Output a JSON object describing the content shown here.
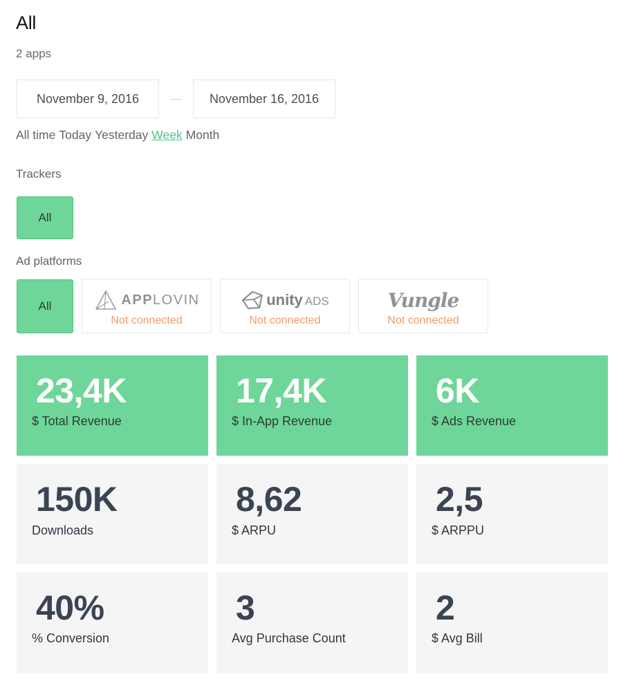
{
  "header": {
    "title": "All",
    "subtitle": "2 apps"
  },
  "date_range": {
    "from": "November 9, 2016",
    "to": "November 16, 2016"
  },
  "periods": [
    {
      "label": "All time",
      "active": false
    },
    {
      "label": "Today",
      "active": false
    },
    {
      "label": "Yesterday",
      "active": false
    },
    {
      "label": "Week",
      "active": true
    },
    {
      "label": "Month",
      "active": false
    }
  ],
  "trackers": {
    "label": "Trackers",
    "all_label": "All"
  },
  "ad_platforms": {
    "label": "Ad platforms",
    "all_label": "All",
    "items": [
      {
        "logo": "APPLOVIN",
        "logo_bold": "APP",
        "logo_rest": "LOVIN",
        "status": "Not connected",
        "icon": "applovin-logo"
      },
      {
        "logo": "unity ADS",
        "logo_bold": "unity",
        "logo_rest": "ADS",
        "status": "Not connected",
        "icon": "unity-ads-logo"
      },
      {
        "logo": "Vungle",
        "status": "Not connected",
        "icon": "vungle-logo"
      }
    ]
  },
  "metrics": [
    {
      "value": "23,4K",
      "label": "$ Total Revenue",
      "style": "green"
    },
    {
      "value": "17,4K",
      "label": "$ In-App Revenue",
      "style": "green"
    },
    {
      "value": "6K",
      "label": "$ Ads Revenue",
      "style": "green"
    },
    {
      "value": "150K",
      "label": "Downloads",
      "style": "gray"
    },
    {
      "value": "8,62",
      "label": "$ ARPU",
      "style": "gray"
    },
    {
      "value": "2,5",
      "label": "$ ARPPU",
      "style": "gray"
    },
    {
      "value": "40%",
      "label": "% Conversion",
      "style": "gray"
    },
    {
      "value": "3",
      "label": "Avg Purchase Count",
      "style": "gray"
    },
    {
      "value": "2",
      "label": "$ Avg Bill",
      "style": "gray"
    }
  ],
  "colors": {
    "accent_green": "#6fd699",
    "link_green": "#4cc584",
    "not_connected": "#f09a6a",
    "card_gray": "#f5f5f6"
  }
}
